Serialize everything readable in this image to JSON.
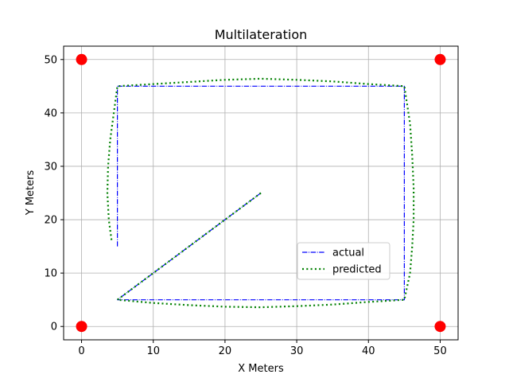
{
  "chart_data": {
    "type": "line",
    "title": "Multilateration",
    "xlabel": "X Meters",
    "ylabel": "Y Meters",
    "xlim": [
      -2.5,
      52.5
    ],
    "ylim": [
      -2.5,
      52.5
    ],
    "xticks": [
      0,
      10,
      20,
      30,
      40,
      50
    ],
    "yticks": [
      0,
      10,
      20,
      30,
      40,
      50
    ],
    "grid": true,
    "legend_position": "lower-right",
    "anchors": {
      "color": "#ff0000",
      "points": [
        [
          0,
          50
        ],
        [
          50,
          50
        ],
        [
          0,
          0
        ],
        [
          50,
          0
        ]
      ]
    },
    "series": [
      {
        "name": "actual",
        "color": "#0000ff",
        "style": "dashdot",
        "points": [
          [
            25,
            25
          ],
          [
            5,
            5
          ],
          [
            45,
            5
          ],
          [
            45,
            45
          ],
          [
            5,
            45
          ],
          [
            5,
            15
          ]
        ]
      },
      {
        "name": "predicted",
        "color": "#008000",
        "style": "dotted",
        "points": [
          [
            25,
            25
          ],
          [
            5,
            5
          ],
          [
            10,
            4.4
          ],
          [
            15,
            4.0
          ],
          [
            20,
            3.7
          ],
          [
            25,
            3.6
          ],
          [
            30,
            3.8
          ],
          [
            35,
            4.1
          ],
          [
            40,
            4.6
          ],
          [
            45,
            5
          ],
          [
            45.8,
            10
          ],
          [
            46.1,
            15
          ],
          [
            46.3,
            20
          ],
          [
            46.3,
            26
          ],
          [
            46.1,
            32
          ],
          [
            45.8,
            38
          ],
          [
            45,
            45
          ],
          [
            40,
            45.4
          ],
          [
            35,
            45.9
          ],
          [
            30,
            46.2
          ],
          [
            25,
            46.4
          ],
          [
            20,
            46.2
          ],
          [
            15,
            45.8
          ],
          [
            10,
            45.4
          ],
          [
            5,
            45
          ],
          [
            4.5,
            40
          ],
          [
            4.0,
            35
          ],
          [
            3.7,
            30
          ],
          [
            3.6,
            25
          ],
          [
            3.8,
            20
          ],
          [
            4.2,
            16
          ]
        ]
      }
    ]
  }
}
